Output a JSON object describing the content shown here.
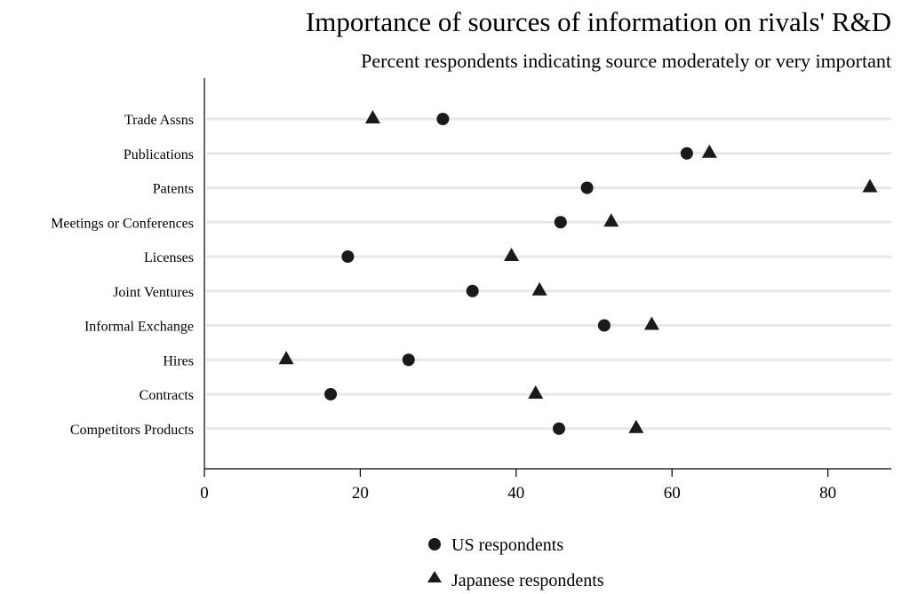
{
  "chart_data": {
    "type": "scatter",
    "title": "Importance of sources of information on rivals' R&D",
    "subtitle": "Percent respondents indicating source moderately or very important",
    "categories": [
      "Trade Assns",
      "Publications",
      "Patents",
      "Meetings or Conferences",
      "Licenses",
      "Joint Ventures",
      "Informal Exchange",
      "Hires",
      "Contracts",
      "Competitors Products"
    ],
    "series": [
      {
        "name": "US respondents",
        "marker": "circle",
        "values": [
          30.6,
          61.9,
          49.1,
          45.7,
          18.4,
          34.4,
          51.3,
          26.2,
          16.2,
          45.5
        ]
      },
      {
        "name": "Japanese respondents",
        "marker": "triangle",
        "values": [
          21.6,
          64.8,
          85.4,
          52.2,
          39.4,
          43.0,
          57.4,
          10.5,
          42.5,
          55.4
        ]
      }
    ],
    "xticks": [
      0,
      20,
      40,
      60,
      80
    ],
    "xlim": [
      0,
      87
    ],
    "xlabel": "",
    "ylabel": "",
    "grid": true,
    "legend_position": "bottom"
  }
}
